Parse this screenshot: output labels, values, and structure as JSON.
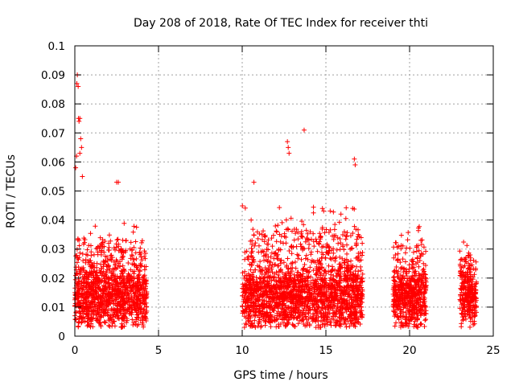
{
  "chart_data": {
    "type": "scatter",
    "title": "Day 208 of 2018, Rate Of TEC Index for receiver thti",
    "xlabel": "GPS time / hours",
    "ylabel": "ROTI / TECUs",
    "xlim": [
      0,
      25
    ],
    "ylim": [
      0,
      0.1
    ],
    "grid": true,
    "marker": "+",
    "color": "#ff0000",
    "x_ticks": [
      0,
      5,
      10,
      15,
      20,
      25
    ],
    "y_ticks": [
      0,
      0.01,
      0.02,
      0.03,
      0.04,
      0.05,
      0.06,
      0.07,
      0.08,
      0.09,
      0.1
    ],
    "x_tick_labels": [
      "0",
      "5",
      "10",
      "15",
      "20",
      "25"
    ],
    "y_tick_labels": [
      "0",
      "0.01",
      "0.02",
      "0.03",
      "0.04",
      "0.05",
      "0.06",
      "0.07",
      "0.08",
      "0.09",
      "0.1"
    ],
    "series": [
      {
        "name": "ROTI",
        "segments": [
          {
            "start": 0.0,
            "end": 4.3,
            "base": 0.013,
            "spread": 0.012,
            "peak": 0.04
          },
          {
            "start": 10.0,
            "end": 17.2,
            "base": 0.013,
            "spread": 0.012,
            "peak": 0.045
          },
          {
            "start": 19.0,
            "end": 21.0,
            "base": 0.013,
            "spread": 0.011,
            "peak": 0.038
          },
          {
            "start": 23.0,
            "end": 24.0,
            "base": 0.013,
            "spread": 0.01,
            "peak": 0.033
          }
        ],
        "notable_points": [
          {
            "x": 0.05,
            "y": 0.058
          },
          {
            "x": 0.1,
            "y": 0.062
          },
          {
            "x": 0.12,
            "y": 0.087
          },
          {
            "x": 0.15,
            "y": 0.09
          },
          {
            "x": 0.2,
            "y": 0.086
          },
          {
            "x": 0.22,
            "y": 0.075
          },
          {
            "x": 0.25,
            "y": 0.074
          },
          {
            "x": 0.3,
            "y": 0.075
          },
          {
            "x": 0.35,
            "y": 0.068
          },
          {
            "x": 0.4,
            "y": 0.065
          },
          {
            "x": 0.3,
            "y": 0.063
          },
          {
            "x": 0.45,
            "y": 0.055
          },
          {
            "x": 2.5,
            "y": 0.053
          },
          {
            "x": 2.6,
            "y": 0.053
          },
          {
            "x": 12.7,
            "y": 0.067
          },
          {
            "x": 12.75,
            "y": 0.065
          },
          {
            "x": 12.8,
            "y": 0.063
          },
          {
            "x": 13.7,
            "y": 0.071
          },
          {
            "x": 16.7,
            "y": 0.061
          },
          {
            "x": 16.75,
            "y": 0.059
          },
          {
            "x": 10.7,
            "y": 0.053
          },
          {
            "x": 16.6,
            "y": 0.044
          }
        ]
      }
    ]
  }
}
